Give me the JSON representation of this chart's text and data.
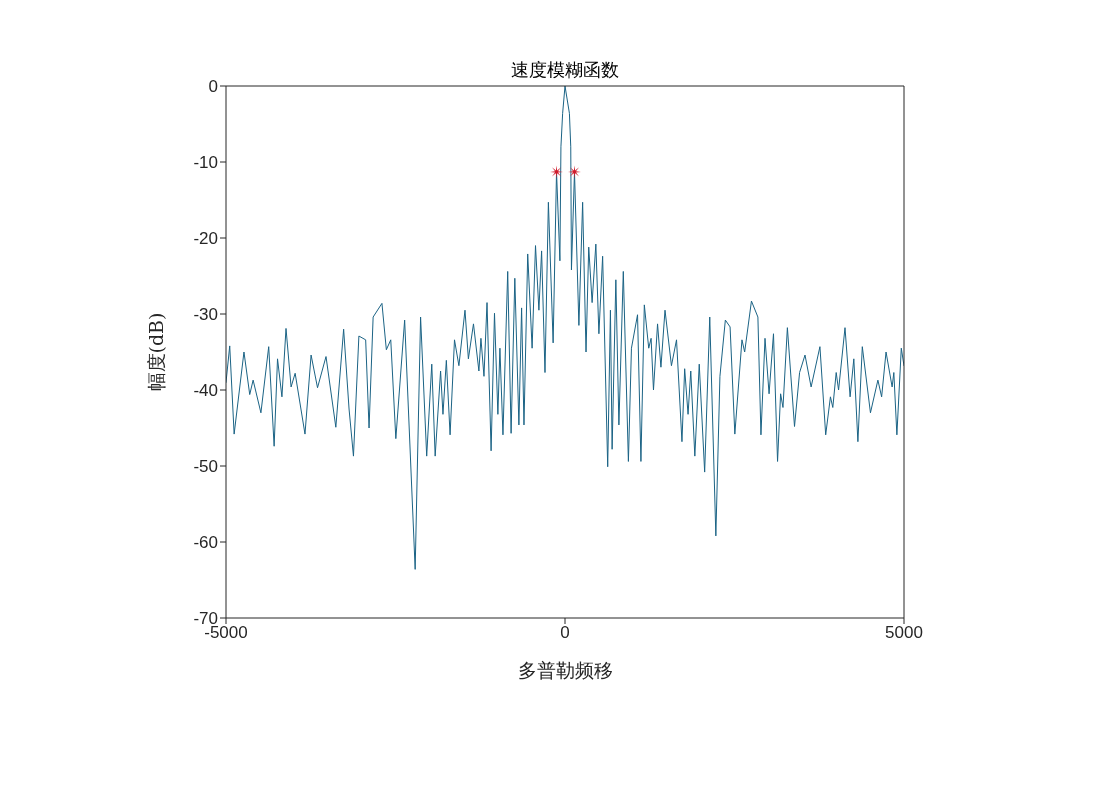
{
  "chart_data": {
    "type": "line",
    "title": "速度模糊函数",
    "xlabel": "多普勒频移",
    "ylabel": "幅度(dB)",
    "xlim": [
      -5000,
      5000
    ],
    "xticks": [
      -5000,
      0,
      5000
    ],
    "ylim": [
      -70,
      0
    ],
    "yticks": [
      -70,
      -60,
      -50,
      -40,
      -30,
      -20,
      -10,
      0
    ],
    "series": [
      {
        "color": "#1b6385",
        "x": [
          -5000,
          -4945,
          -4880,
          -4735,
          -4650,
          -4600,
          -4485,
          -4370,
          -4290,
          -4240,
          -4175,
          -4115,
          -4040,
          -3980,
          -3835,
          -3745,
          -3650,
          -3525,
          -3380,
          -3265,
          -3185,
          -3120,
          -3040,
          -2940,
          -2890,
          -2830,
          -2700,
          -2635,
          -2570,
          -2495,
          -2365,
          -2210,
          -2130,
          -2040,
          -1965,
          -1915,
          -1835,
          -1800,
          -1750,
          -1695,
          -1630,
          -1565,
          -1475,
          -1425,
          -1350,
          -1270,
          -1240,
          -1195,
          -1150,
          -1090,
          -1040,
          -990,
          -960,
          -915,
          -845,
          -795,
          -740,
          -680,
          -640,
          -605,
          -550,
          -485,
          -435,
          -385,
          -345,
          -295,
          -245,
          -175,
          -125,
          -75,
          -60,
          -35,
          0,
          65,
          85,
          95,
          140,
          205,
          260,
          310,
          350,
          400,
          455,
          500,
          555,
          630,
          670,
          695,
          750,
          795,
          860,
          935,
          980,
          1070,
          1120,
          1170,
          1235,
          1270,
          1305,
          1365,
          1415,
          1475,
          1570,
          1645,
          1725,
          1765,
          1815,
          1855,
          1915,
          1980,
          2060,
          2135,
          2225,
          2285,
          2365,
          2435,
          2505,
          2610,
          2650,
          2750,
          2845,
          2890,
          2950,
          3010,
          3075,
          3135,
          3180,
          3215,
          3280,
          3385,
          3460,
          3540,
          3630,
          3760,
          3845,
          3915,
          3950,
          4000,
          4035,
          4130,
          4205,
          4260,
          4320,
          4385,
          4505,
          4615,
          4670,
          4735,
          4825,
          4850,
          4895,
          4960,
          5000
        ],
        "values": [
          -39,
          -34.2,
          -45.8,
          -35,
          -40.6,
          -38.7,
          -43,
          -34.3,
          -47.4,
          -35.9,
          -40.9,
          -31.9,
          -39.6,
          -37.8,
          -45.8,
          -35.4,
          -39.7,
          -35.6,
          -44.9,
          -32,
          -42.5,
          -48.7,
          -32.9,
          -33.4,
          -45,
          -30.4,
          -28.6,
          -34.7,
          -33.4,
          -46.4,
          -30.8,
          -63.6,
          -30.4,
          -48.7,
          -36.6,
          -48.7,
          -37.5,
          -43.2,
          -36.1,
          -45.9,
          -33.4,
          -36.8,
          -29.5,
          -35.9,
          -31.3,
          -37.5,
          -33.2,
          -38.2,
          -28.5,
          -48,
          -29.9,
          -43.2,
          -34.5,
          -45.9,
          -24.4,
          -45.7,
          -25.3,
          -44.6,
          -29.2,
          -44.6,
          -22.1,
          -34.5,
          -21,
          -29.5,
          -21.7,
          -37.7,
          -15.3,
          -33.8,
          -11.3,
          -23,
          -8,
          -3.6,
          0,
          -3.6,
          -8,
          -24.2,
          -11.3,
          -31.5,
          -15.3,
          -35,
          -21.2,
          -28.5,
          -20.8,
          -32.6,
          -22.4,
          -50.1,
          -29.5,
          -47.8,
          -25.5,
          -44.6,
          -24.4,
          -49.4,
          -34.5,
          -30.1,
          -49.4,
          -28.8,
          -34.5,
          -33.2,
          -40,
          -31.3,
          -37,
          -29.5,
          -36.8,
          -33.4,
          -46.8,
          -37.2,
          -43.2,
          -37.5,
          -48.7,
          -36.6,
          -50.8,
          -30.4,
          -59.2,
          -38.2,
          -30.8,
          -31.7,
          -45.8,
          -33.4,
          -35,
          -28.3,
          -30.4,
          -45.9,
          -33.2,
          -40.5,
          -32.6,
          -49.4,
          -40.5,
          -42.3,
          -31.8,
          -44.8,
          -37.7,
          -35.4,
          -39.6,
          -34.3,
          -45.9,
          -40.9,
          -42.3,
          -37.7,
          -40,
          -31.8,
          -40.9,
          -35.9,
          -46.8,
          -34.3,
          -43,
          -38.7,
          -40.9,
          -35,
          -39.6,
          -37.7,
          -45.9,
          -34.5,
          -36.8
        ]
      },
      {
        "type": "scatter",
        "color": "#d01c2c",
        "marker": "star",
        "x": [
          -125,
          140
        ],
        "values": [
          -11.3,
          -11.3
        ]
      }
    ]
  }
}
